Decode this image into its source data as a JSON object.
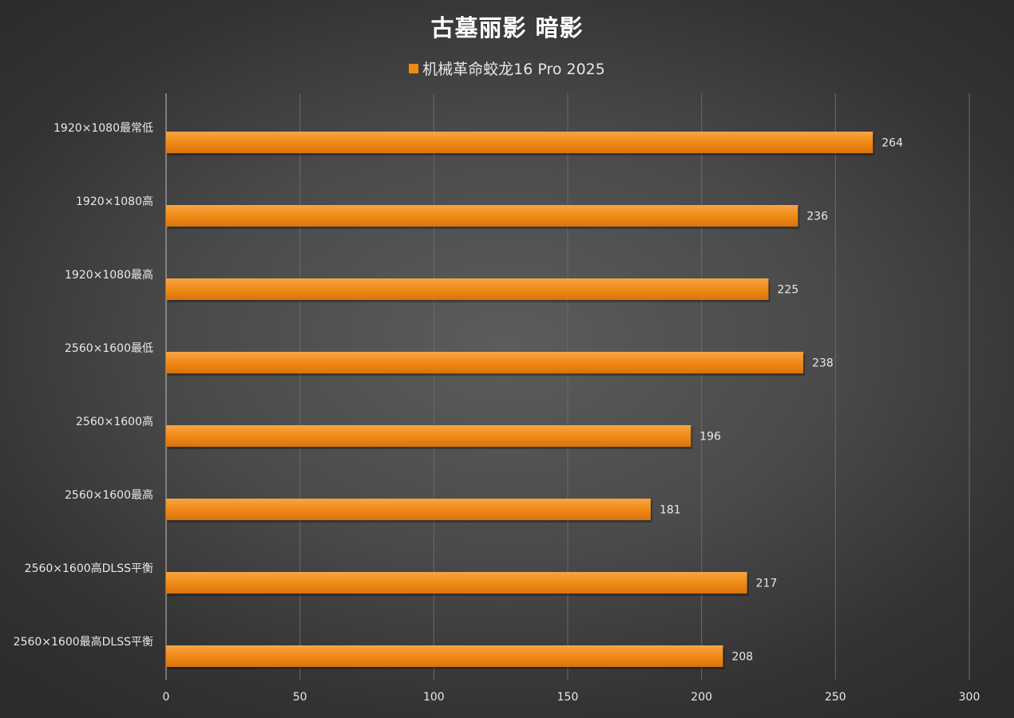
{
  "chart_data": {
    "type": "bar",
    "orientation": "horizontal",
    "title": "古墓丽影 暗影",
    "categories": [
      "1920×1080最常低",
      "1920×1080高",
      "1920×1080最高",
      "2560×1600最低",
      "2560×1600高",
      "2560×1600最高",
      "2560×1600高DLSS平衡",
      "2560×1600最高DLSS平衡"
    ],
    "series": [
      {
        "name": "机械革命蛟龙16 Pro 2025",
        "values": [
          264,
          236,
          225,
          238,
          196,
          181,
          217,
          208
        ],
        "color": "#f08a17"
      }
    ],
    "xlim": [
      0,
      300
    ],
    "xticks": [
      0,
      50,
      100,
      150,
      200,
      250,
      300
    ],
    "grid": true,
    "legend_position": "top",
    "data_labels": true
  },
  "colors": {
    "bar": "#f08a17",
    "bar_light": "#f7a544",
    "bar_dark": "#d9740c",
    "text": "#e8e8e8",
    "grid": "#6a6a6a",
    "axis": "#bdbdbd"
  }
}
